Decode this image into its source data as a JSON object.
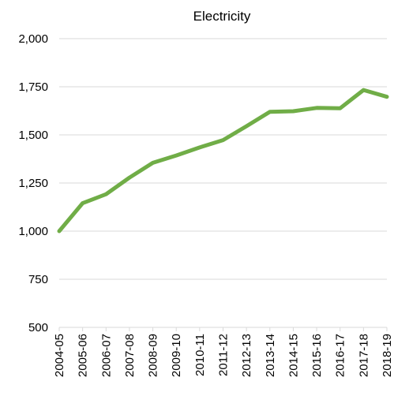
{
  "chart_data": {
    "type": "line",
    "title": "Electricity",
    "xlabel": "",
    "ylabel": "",
    "categories": [
      "2004-05",
      "2005-06",
      "2006-07",
      "2007-08",
      "2008-09",
      "2009-10",
      "2010-11",
      "2011-12",
      "2012-13",
      "2013-14",
      "2014-15",
      "2015-16",
      "2016-17",
      "2017-18",
      "2018-19"
    ],
    "series": [
      {
        "values": [
          1000,
          1145,
          1192,
          1278,
          1355,
          1393,
          1435,
          1473,
          1545,
          1620,
          1623,
          1640,
          1638,
          1733,
          1698
        ]
      }
    ],
    "y_ticks": [
      "500",
      "750",
      "1,000",
      "1,250",
      "1,500",
      "1,750",
      "2,000"
    ],
    "y_tick_values": [
      500,
      750,
      1000,
      1250,
      1500,
      1750,
      2000
    ],
    "ylim": [
      500,
      2000
    ],
    "grid": "horizontal",
    "legend": "none",
    "line_color": "#70AD47",
    "grid_color": "#D9D9D9"
  }
}
